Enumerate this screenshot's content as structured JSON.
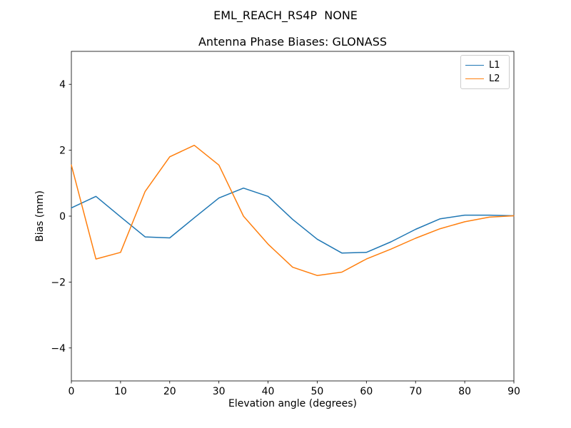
{
  "chart_data": {
    "type": "line",
    "title": "EML_REACH_RS4P  NONE",
    "subtitle": "Antenna Phase Biases: GLONASS",
    "xlabel": "Elevation angle (degrees)",
    "ylabel": "Bias (mm)",
    "xlim": [
      0,
      90
    ],
    "ylim": [
      -5,
      5
    ],
    "xticks": [
      0,
      10,
      20,
      30,
      40,
      50,
      60,
      70,
      80,
      90
    ],
    "yticks": [
      -4,
      -2,
      0,
      2,
      4
    ],
    "grid": false,
    "legend_position": "upper right",
    "x": [
      0,
      5,
      10,
      15,
      20,
      25,
      30,
      35,
      40,
      45,
      50,
      55,
      60,
      65,
      70,
      75,
      80,
      85,
      90
    ],
    "series": [
      {
        "name": "L1",
        "color": "#1f77b4",
        "values": [
          0.25,
          0.6,
          -0.02,
          -0.63,
          -0.66,
          -0.05,
          0.55,
          0.85,
          0.6,
          -0.1,
          -0.7,
          -1.12,
          -1.1,
          -0.78,
          -0.4,
          -0.08,
          0.03,
          0.03,
          0.01
        ]
      },
      {
        "name": "L2",
        "color": "#ff7f0e",
        "values": [
          1.55,
          -1.3,
          -1.1,
          0.75,
          1.8,
          2.15,
          1.55,
          0.0,
          -0.85,
          -1.55,
          -1.8,
          -1.7,
          -1.3,
          -1.0,
          -0.67,
          -0.38,
          -0.17,
          -0.03,
          0.01
        ]
      }
    ]
  }
}
